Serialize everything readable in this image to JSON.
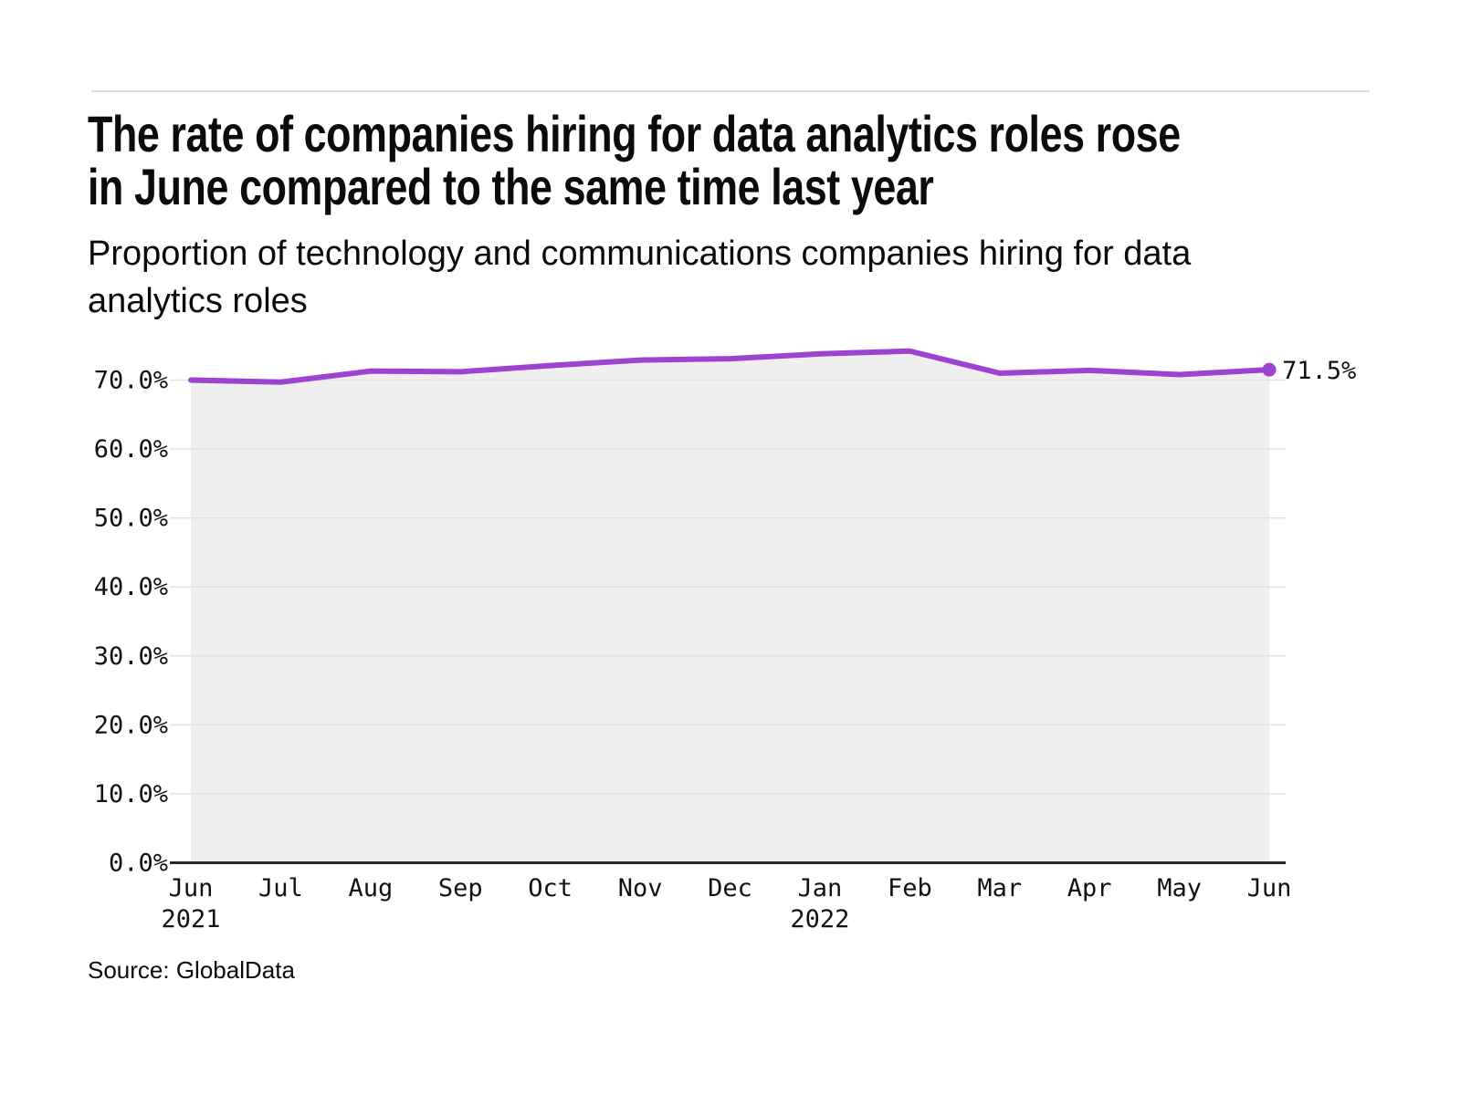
{
  "chart_data": {
    "type": "line",
    "area_fill": true,
    "title": "The rate of companies hiring for data analytics roles rose in June compared to the same time last year",
    "title_lines": [
      "The rate of companies hiring for data analytics roles rose",
      "in June compared to the same time last year"
    ],
    "subtitle": "Proportion of technology and communications companies hiring for data analytics roles",
    "subtitle_lines": [
      "Proportion of technology and communications companies hiring for data",
      "analytics roles"
    ],
    "months": [
      {
        "label": "Jun",
        "year": "2021"
      },
      {
        "label": "Jul"
      },
      {
        "label": "Aug"
      },
      {
        "label": "Sep"
      },
      {
        "label": "Oct"
      },
      {
        "label": "Nov"
      },
      {
        "label": "Dec"
      },
      {
        "label": "Jan",
        "year": "2022"
      },
      {
        "label": "Feb"
      },
      {
        "label": "Mar"
      },
      {
        "label": "Apr"
      },
      {
        "label": "May"
      },
      {
        "label": "Jun"
      }
    ],
    "values": [
      70.0,
      69.7,
      71.3,
      71.2,
      72.1,
      72.9,
      73.1,
      73.8,
      74.2,
      71.0,
      71.4,
      70.8,
      71.5
    ],
    "unit": "%",
    "ylim": [
      0,
      80
    ],
    "ytick_values": [
      0,
      10,
      20,
      30,
      40,
      50,
      60,
      70
    ],
    "ytick_labels": [
      "0.0%",
      "10.0%",
      "20.0%",
      "30.0%",
      "40.0%",
      "50.0%",
      "60.0%",
      "70.0%"
    ],
    "end_annotation": "71.5%",
    "grid": "horizontal",
    "legend": "none",
    "colors": {
      "line": "#9c44d1",
      "dot": "#9c44d1",
      "area": "#efefef",
      "grid": "#e2e2e2",
      "axis": "#2a2a2a",
      "text": "#121212",
      "divider": "#dddddd"
    }
  },
  "source": {
    "label": "Source: GlobalData"
  }
}
